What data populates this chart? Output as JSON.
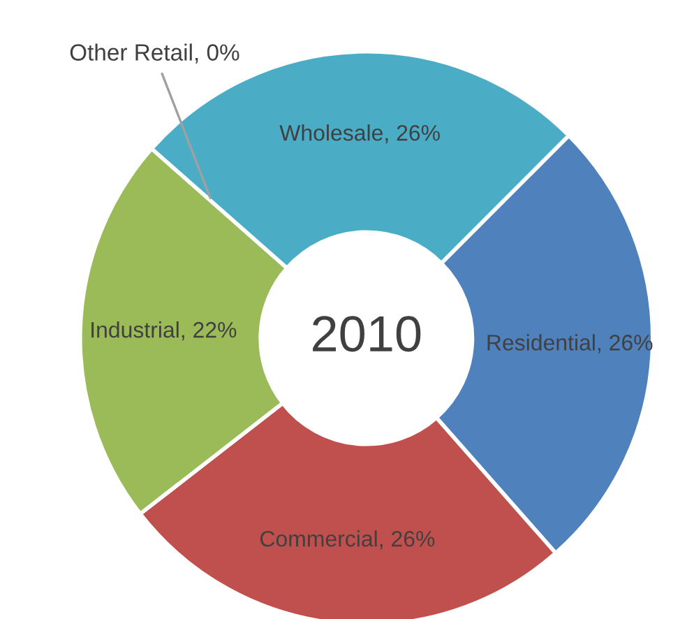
{
  "chart_data": {
    "type": "donut",
    "categories": [
      "Residential",
      "Commercial",
      "Industrial",
      "Other Retail",
      "Wholesale"
    ],
    "values": [
      26,
      26,
      22,
      0,
      26
    ],
    "colors": [
      "#4f81bd",
      "#c0504d",
      "#9bbb59",
      "#8064a2",
      "#4bacc6"
    ],
    "value_labels": [
      ", 26%",
      ", 26%",
      ", 22%",
      ", 0%",
      ", 26%"
    ],
    "annotations": [
      "2010"
    ],
    "legend": false
  }
}
